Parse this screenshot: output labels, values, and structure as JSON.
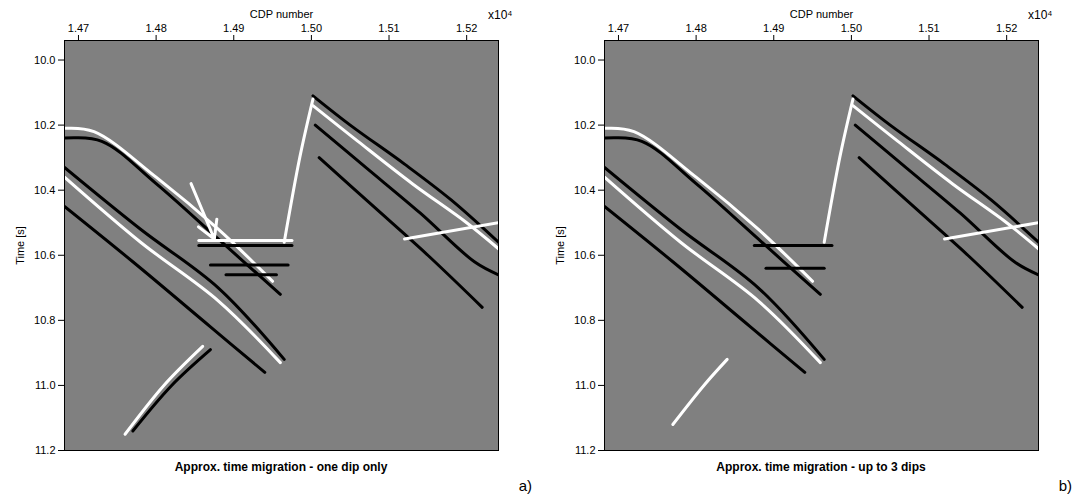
{
  "chart_data": [
    {
      "type": "line",
      "title": "Approx. time migration - one dip only",
      "panel": "a)",
      "x_label": "CDP number",
      "x_multiplier": "x10⁴",
      "y_label": "Time [s]",
      "xlim": [
        1.4682,
        1.5241
      ],
      "ylim": [
        11.2,
        9.94
      ],
      "xticks": [
        1.47,
        1.48,
        1.49,
        {
          "value": 1.5,
          "label": "1.50"
        },
        1.51,
        1.52
      ],
      "yticks": [
        {
          "value": 10,
          "label": "10.0"
        },
        10.2,
        10.4,
        10.6,
        10.8,
        {
          "value": 11,
          "label": "11.0"
        },
        11.2
      ],
      "series": [
        {
          "color": "#ffffff",
          "x": [
            1.4682,
            1.472,
            1.48,
            1.488,
            1.495
          ],
          "values": [
            10.21,
            10.22,
            10.36,
            10.52,
            10.68
          ]
        },
        {
          "color": "#000000",
          "x": [
            1.4682,
            1.473,
            1.48,
            1.488,
            1.496
          ],
          "values": [
            10.24,
            10.25,
            10.38,
            10.55,
            10.72
          ]
        },
        {
          "color": "#000000",
          "x": [
            1.4682,
            1.478,
            1.488,
            1.4965
          ],
          "values": [
            10.33,
            10.52,
            10.7,
            10.92
          ]
        },
        {
          "color": "#ffffff",
          "x": [
            1.4682,
            1.478,
            1.488,
            1.496
          ],
          "values": [
            10.36,
            10.56,
            10.74,
            10.93
          ]
        },
        {
          "color": "#000000",
          "x": [
            1.4682,
            1.477,
            1.487,
            1.494
          ],
          "values": [
            10.45,
            10.62,
            10.82,
            10.96
          ]
        },
        {
          "color": "#000000",
          "x": [
            1.5002,
            1.505,
            1.512,
            1.518,
            1.5241
          ],
          "values": [
            10.11,
            10.2,
            10.32,
            10.43,
            10.56
          ]
        },
        {
          "color": "#ffffff",
          "x": [
            1.5002,
            1.506,
            1.513,
            1.52,
            1.5241
          ],
          "values": [
            10.14,
            10.25,
            10.38,
            10.5,
            10.58
          ]
        },
        {
          "color": "#000000",
          "x": [
            1.5005,
            1.507,
            1.514,
            1.521,
            1.5241
          ],
          "values": [
            10.2,
            10.33,
            10.47,
            10.62,
            10.66
          ]
        },
        {
          "color": "#000000",
          "x": [
            1.501,
            1.508,
            1.515,
            1.522
          ],
          "values": [
            10.3,
            10.45,
            10.6,
            10.76
          ]
        },
        {
          "color": "#ffffff",
          "x": [
            1.5002,
            1.4985,
            1.4965
          ],
          "values": [
            10.12,
            10.3,
            10.56
          ]
        },
        {
          "color": "#ffffff",
          "x": [
            1.512,
            1.5241
          ],
          "values": [
            10.55,
            10.5
          ]
        },
        {
          "color": "#ffffff",
          "x": [
            1.4855,
            1.4975
          ],
          "values": [
            10.555,
            10.555
          ]
        },
        {
          "color": "#000000",
          "x": [
            1.4855,
            1.4975
          ],
          "values": [
            10.57,
            10.57
          ]
        },
        {
          "color": "#000000",
          "x": [
            1.487,
            1.497
          ],
          "values": [
            10.63,
            10.63
          ]
        },
        {
          "color": "#000000",
          "x": [
            1.489,
            1.4955
          ],
          "values": [
            10.66,
            10.66
          ]
        },
        {
          "color": "#ffffff",
          "x": [
            1.476,
            1.481,
            1.486
          ],
          "values": [
            11.15,
            11.0,
            10.88
          ]
        },
        {
          "color": "#000000",
          "x": [
            1.477,
            1.482,
            1.487
          ],
          "values": [
            11.14,
            11.0,
            10.89
          ]
        }
      ],
      "arrow": {
        "x": [
          1.4845,
          1.4875
        ],
        "y": [
          10.38,
          10.55
        ]
      }
    },
    {
      "type": "line",
      "title": "Approx. time migration - up to 3 dips",
      "panel": "b)",
      "x_label": "CDP number",
      "x_multiplier": "x10⁴",
      "y_label": "Time [s]",
      "xlim": [
        1.4682,
        1.5241
      ],
      "ylim": [
        11.2,
        9.94
      ],
      "xticks": [
        1.47,
        1.48,
        1.49,
        {
          "value": 1.5,
          "label": "1.50"
        },
        1.51,
        1.52
      ],
      "yticks": [
        {
          "value": 10,
          "label": "10.0"
        },
        10.2,
        10.4,
        10.6,
        10.8,
        {
          "value": 11,
          "label": "11.0"
        },
        11.2
      ],
      "series": [
        {
          "color": "#ffffff",
          "x": [
            1.4682,
            1.472,
            1.48,
            1.488,
            1.495
          ],
          "values": [
            10.21,
            10.22,
            10.36,
            10.52,
            10.68
          ]
        },
        {
          "color": "#000000",
          "x": [
            1.4682,
            1.473,
            1.48,
            1.488,
            1.496
          ],
          "values": [
            10.24,
            10.25,
            10.38,
            10.55,
            10.72
          ]
        },
        {
          "color": "#000000",
          "x": [
            1.4682,
            1.478,
            1.488,
            1.4965
          ],
          "values": [
            10.33,
            10.52,
            10.7,
            10.92
          ]
        },
        {
          "color": "#ffffff",
          "x": [
            1.4682,
            1.478,
            1.488,
            1.496
          ],
          "values": [
            10.36,
            10.56,
            10.74,
            10.93
          ]
        },
        {
          "color": "#000000",
          "x": [
            1.4682,
            1.477,
            1.487,
            1.494
          ],
          "values": [
            10.45,
            10.62,
            10.82,
            10.96
          ]
        },
        {
          "color": "#000000",
          "x": [
            1.5002,
            1.505,
            1.512,
            1.518,
            1.5241
          ],
          "values": [
            10.11,
            10.2,
            10.32,
            10.43,
            10.56
          ]
        },
        {
          "color": "#ffffff",
          "x": [
            1.5002,
            1.506,
            1.513,
            1.52,
            1.5241
          ],
          "values": [
            10.14,
            10.25,
            10.38,
            10.5,
            10.58
          ]
        },
        {
          "color": "#000000",
          "x": [
            1.5005,
            1.507,
            1.514,
            1.521,
            1.5241
          ],
          "values": [
            10.2,
            10.33,
            10.47,
            10.62,
            10.66
          ]
        },
        {
          "color": "#000000",
          "x": [
            1.501,
            1.508,
            1.515,
            1.522
          ],
          "values": [
            10.3,
            10.45,
            10.6,
            10.76
          ]
        },
        {
          "color": "#ffffff",
          "x": [
            1.5002,
            1.4985,
            1.4965
          ],
          "values": [
            10.12,
            10.3,
            10.56
          ]
        },
        {
          "color": "#ffffff",
          "x": [
            1.512,
            1.5241
          ],
          "values": [
            10.55,
            10.5
          ]
        },
        {
          "color": "#000000",
          "x": [
            1.4875,
            1.4975
          ],
          "values": [
            10.57,
            10.57
          ]
        },
        {
          "color": "#000000",
          "x": [
            1.489,
            1.4965
          ],
          "values": [
            10.64,
            10.64
          ]
        },
        {
          "color": "#ffffff",
          "x": [
            1.477,
            1.481,
            1.484
          ],
          "values": [
            11.12,
            11.0,
            10.92
          ]
        }
      ]
    }
  ]
}
